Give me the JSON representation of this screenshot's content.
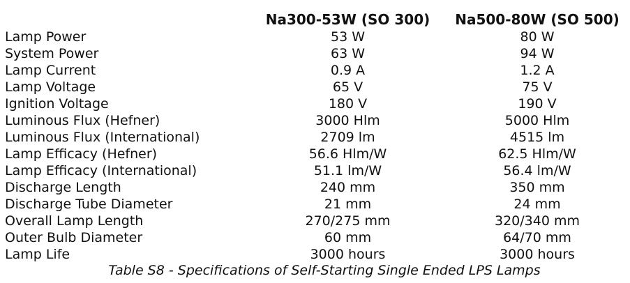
{
  "table": {
    "headers": [
      "",
      "Na300-53W (SO 300)",
      "Na500-80W (SO 500)"
    ],
    "rows": [
      [
        "Lamp Power",
        "53 W",
        "80 W"
      ],
      [
        "System Power",
        "63 W",
        "94 W"
      ],
      [
        "Lamp Current",
        "0.9 A",
        "1.2 A"
      ],
      [
        "Lamp Voltage",
        "65 V",
        "75 V"
      ],
      [
        "Ignition Voltage",
        "180 V",
        "190 V"
      ],
      [
        "Luminous Flux (Hefner)",
        "3000 Hlm",
        "5000 Hlm"
      ],
      [
        "Luminous Flux (International)",
        "2709 lm",
        "4515 lm"
      ],
      [
        "Lamp Efficacy (Hefner)",
        "56.6 Hlm/W",
        "62.5 Hlm/W"
      ],
      [
        "Lamp Efficacy (International)",
        "51.1 lm/W",
        "56.4 lm/W"
      ],
      [
        "Discharge Length",
        "240 mm",
        "350 mm"
      ],
      [
        "Discharge Tube Diameter",
        "21 mm",
        "24 mm"
      ],
      [
        "Overall Lamp Length",
        "270/275 mm",
        "320/340 mm"
      ],
      [
        "Outer Bulb Diameter",
        "60 mm",
        "64/70 mm"
      ],
      [
        "Lamp Life",
        "3000 hours",
        "3000 hours"
      ]
    ],
    "caption": "Table S8 - Specifications of Self-Starting Single Ended LPS Lamps"
  }
}
